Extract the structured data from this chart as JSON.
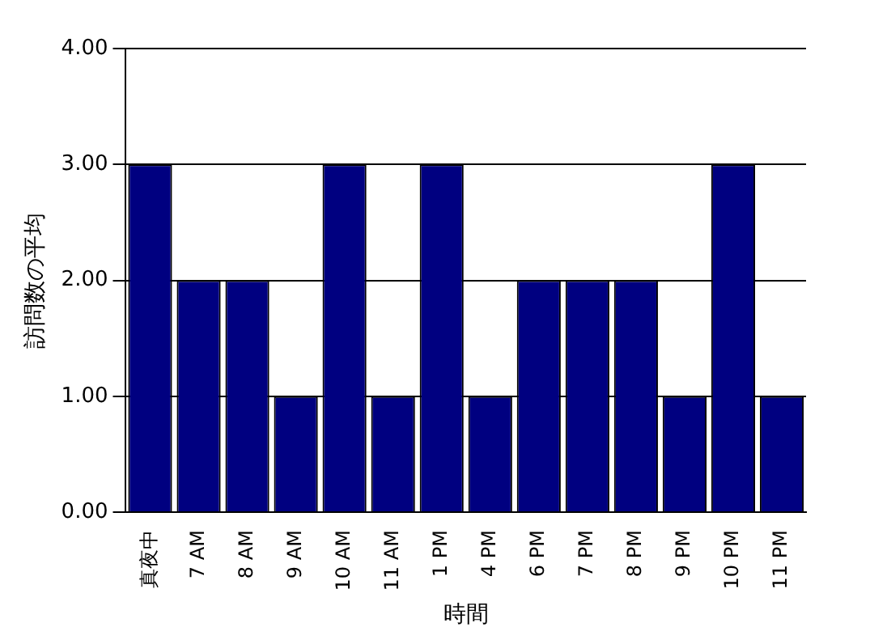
{
  "chart_data": {
    "type": "bar",
    "xlabel": "時間",
    "ylabel": "訪問数の平均",
    "categories": [
      "真夜中",
      "7 AM",
      "8 AM",
      "9 AM",
      "10 AM",
      "11 AM",
      "1 PM",
      "4 PM",
      "6 PM",
      "7 PM",
      "8 PM",
      "9 PM",
      "10 PM",
      "11 PM"
    ],
    "values": [
      3,
      2,
      2,
      1,
      3,
      1,
      3,
      1,
      2,
      2,
      2,
      1,
      3,
      1
    ],
    "color": "#000080",
    "ylim": [
      0,
      4
    ],
    "yticks": [
      {
        "value": 0,
        "label": "0.00"
      },
      {
        "value": 1,
        "label": "1.00"
      },
      {
        "value": 2,
        "label": "2.00"
      },
      {
        "value": 3,
        "label": "3.00"
      },
      {
        "value": 4,
        "label": "4.00"
      }
    ],
    "grid": "y",
    "legend": false
  }
}
